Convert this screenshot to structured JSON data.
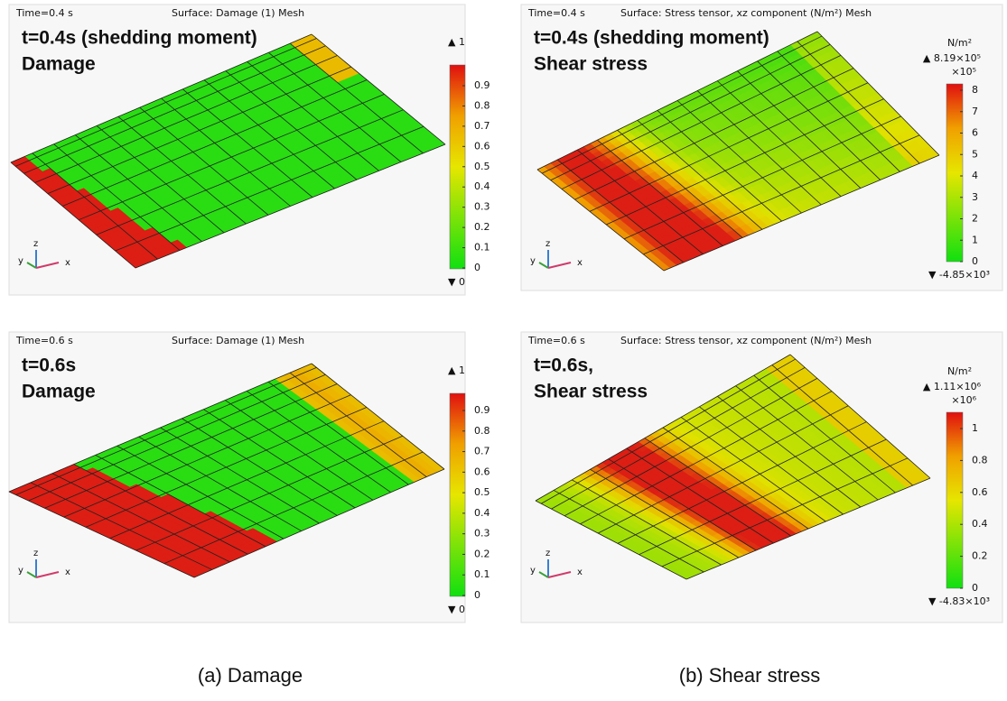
{
  "panels": [
    {
      "time": "Time=0.4 s",
      "surface": "Surface: Damage (1) Mesh",
      "heading": [
        "t=0.4s (shedding moment)",
        "Damage"
      ],
      "max": "▲ 1",
      "min": "▼ 0",
      "ticks": [
        "0.9",
        "0.8",
        "0.7",
        "0.6",
        "0.5",
        "0.4",
        "0.3",
        "0.2",
        "0.1",
        "0"
      ],
      "axes": {
        "x": "x",
        "y": "y",
        "z": "z"
      }
    },
    {
      "time": "Time=0.4 s",
      "surface": "Surface: Stress tensor, xz component (N/m²) Mesh",
      "heading": [
        "t=0.4s (shedding moment)",
        "Shear stress"
      ],
      "unit": "N/m²",
      "max": "▲ 8.19×10⁵",
      "multiplier": "×10⁵",
      "min": "▼ -4.85×10³",
      "ticks": [
        "8",
        "7",
        "6",
        "5",
        "4",
        "3",
        "2",
        "1",
        "0"
      ],
      "axes": {
        "x": "x",
        "y": "y",
        "z": "z"
      }
    },
    {
      "time": "Time=0.6 s",
      "surface": "Surface: Damage (1) Mesh",
      "heading": [
        "t=0.6s",
        "Damage"
      ],
      "max": "▲ 1",
      "min": "▼ 0",
      "ticks": [
        "0.9",
        "0.8",
        "0.7",
        "0.6",
        "0.5",
        "0.4",
        "0.3",
        "0.2",
        "0.1",
        "0"
      ],
      "axes": {
        "x": "x",
        "y": "y",
        "z": "z"
      }
    },
    {
      "time": "Time=0.6 s",
      "surface": "Surface: Stress tensor, xz component (N/m²) Mesh",
      "heading": [
        "t=0.6s,",
        "Shear stress"
      ],
      "unit": "N/m²",
      "max": "▲ 1.11×10⁶",
      "multiplier": "×10⁶",
      "min": "▼ -4.83×10³",
      "ticks": [
        "1",
        "0.8",
        "0.6",
        "0.4",
        "0.2",
        "0"
      ],
      "axes": {
        "x": "x",
        "y": "y",
        "z": "z"
      }
    }
  ],
  "captions": [
    "(a)  Damage",
    "(b)  Shear stress"
  ]
}
